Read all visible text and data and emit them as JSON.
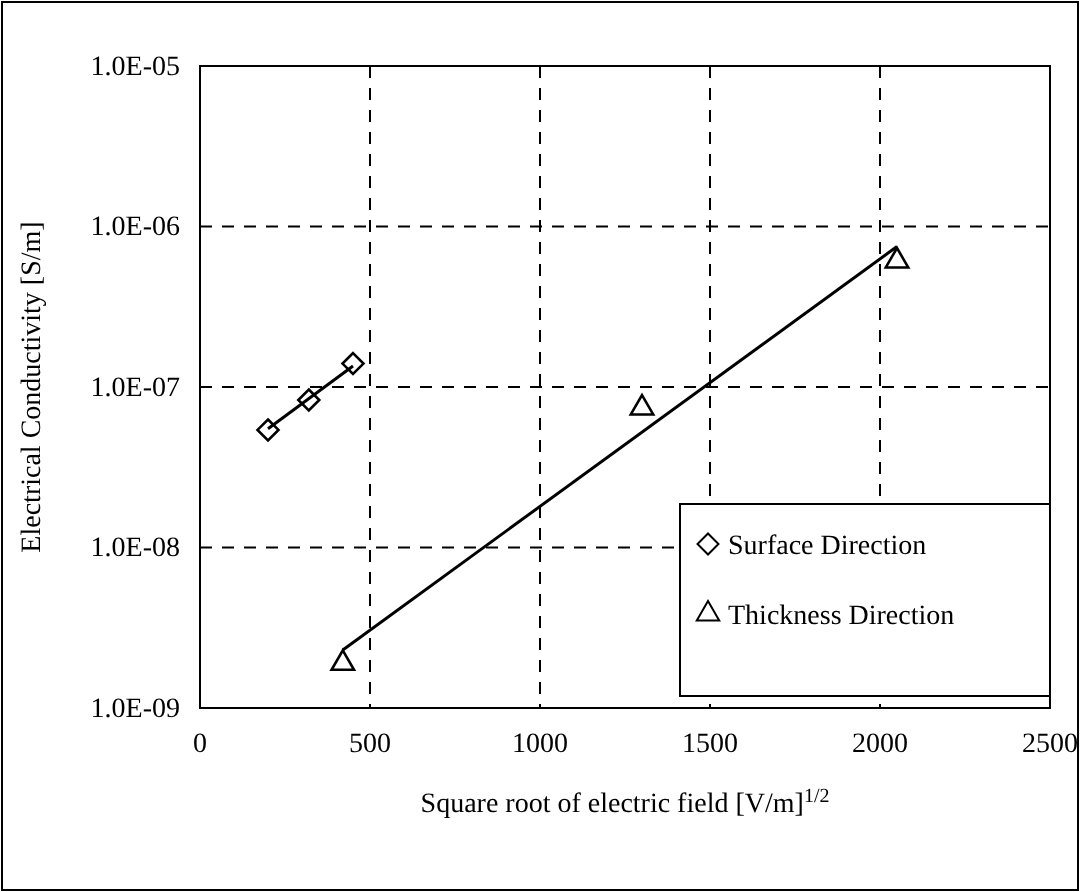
{
  "chart_data": {
    "type": "scatter",
    "xlabel": "Square root of electric field [V/m]$^{1/2}$",
    "ylabel": "Electrical Conductivity [S/m]",
    "log": "y",
    "grid": true,
    "legend": "bottom right",
    "xlim": [
      0,
      2500
    ],
    "xticks": [
      0,
      500,
      1000,
      1500,
      2000,
      2500
    ],
    "ylim": [
      1e-09,
      1e-05
    ],
    "yticks": [
      {
        "value": 1e-09,
        "label": "1.0E-09"
      },
      {
        "value": 1e-08,
        "label": "1.0E-08"
      },
      {
        "value": 1e-07,
        "label": "1.0E-07"
      },
      {
        "value": 1e-06,
        "label": "1.0E-06"
      },
      {
        "value": 1e-05,
        "label": "1.0E-05"
      }
    ],
    "series": [
      {
        "name": "Surface Direction",
        "color": "#000000",
        "marker": "diamond",
        "x": [
          200,
          320,
          450
        ],
        "values": [
          5.4e-08,
          8.3e-08,
          1.4e-07
        ]
      },
      {
        "name": "Thickness Direction",
        "color": "#000000",
        "marker": "triangle",
        "x": [
          420,
          1300,
          2050
        ],
        "values": [
          1.9e-09,
          7.4e-08,
          6.1e-07
        ]
      },
      {
        "type": "line",
        "color": "#000000",
        "marker": "none",
        "x": [
          200,
          450
        ],
        "values": [
          5.5e-08,
          1.35e-07
        ]
      },
      {
        "type": "line",
        "color": "#000000",
        "marker": "none",
        "x": [
          420,
          2050
        ],
        "values": [
          2.3e-09,
          7.5e-07
        ]
      }
    ]
  }
}
